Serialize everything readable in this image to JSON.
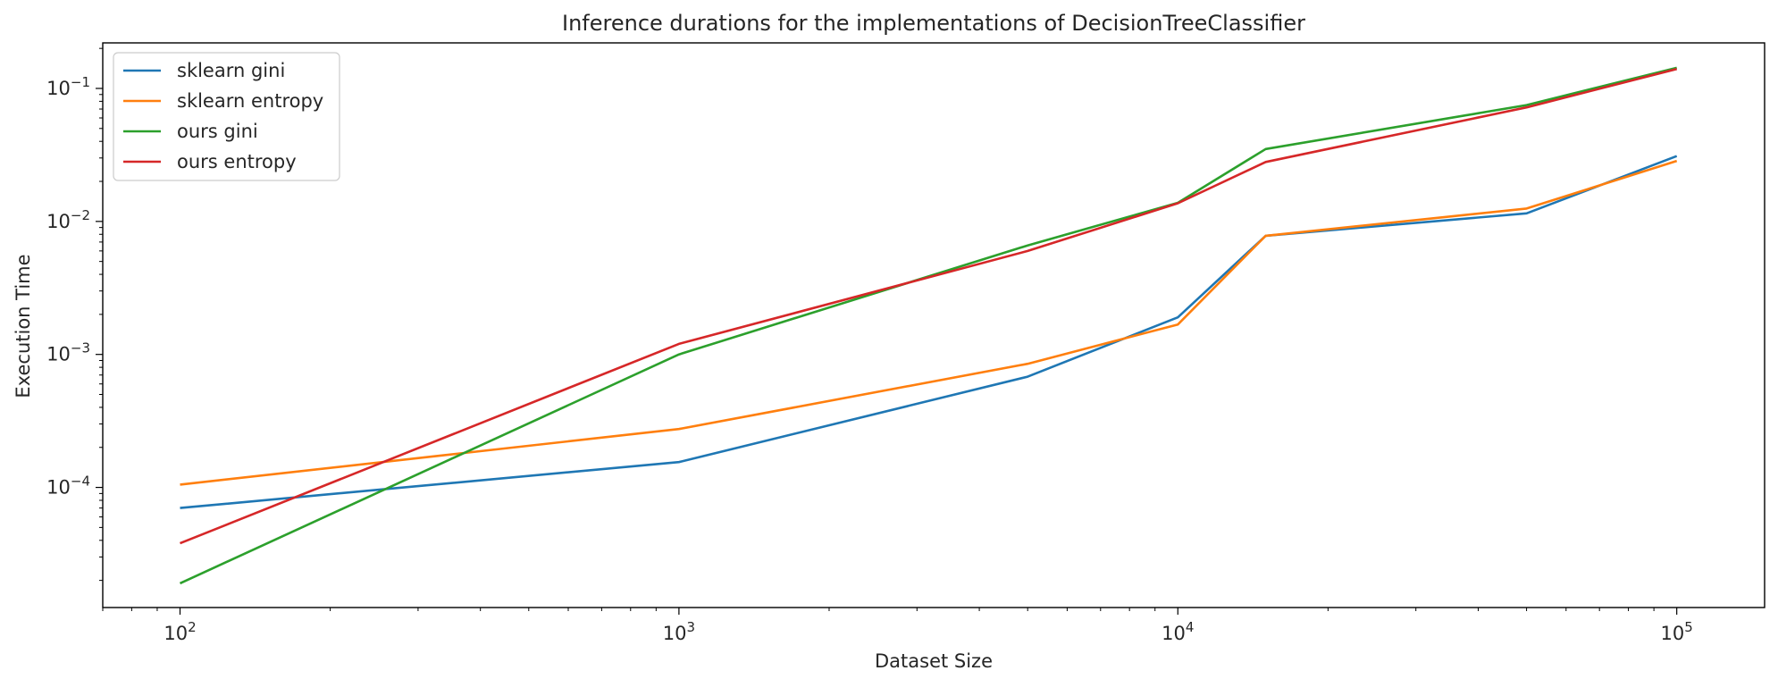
{
  "chart_data": {
    "type": "line",
    "title": "Inference durations for the implementations of DecisionTreeClassifier",
    "xlabel": "Dataset Size",
    "ylabel": "Execution Time",
    "xscale": "log",
    "yscale": "log",
    "xlim": [
      70,
      150000
    ],
    "ylim": [
      1.25e-05,
      0.22
    ],
    "x_ticks": [
      {
        "value": 100,
        "base": "10",
        "exp": "2"
      },
      {
        "value": 1000,
        "base": "10",
        "exp": "3"
      },
      {
        "value": 10000,
        "base": "10",
        "exp": "4"
      },
      {
        "value": 100000,
        "base": "10",
        "exp": "5"
      }
    ],
    "y_ticks": [
      {
        "value": 0.0001,
        "base": "10",
        "exp": "−4"
      },
      {
        "value": 0.001,
        "base": "10",
        "exp": "−3"
      },
      {
        "value": 0.01,
        "base": "10",
        "exp": "−2"
      },
      {
        "value": 0.1,
        "base": "10",
        "exp": "−1"
      }
    ],
    "grid": false,
    "legend_position": "top-left",
    "series": [
      {
        "name": "sklearn gini",
        "color": "#1f77b4",
        "x": [
          100,
          1000,
          5000,
          10000,
          15000,
          50000,
          100000
        ],
        "y": [
          7e-05,
          0.000155,
          0.00068,
          0.0019,
          0.0078,
          0.0115,
          0.031
        ]
      },
      {
        "name": "sklearn entropy",
        "color": "#ff7f0e",
        "x": [
          100,
          1000,
          5000,
          10000,
          15000,
          50000,
          100000
        ],
        "y": [
          0.000105,
          0.000275,
          0.00085,
          0.00168,
          0.0078,
          0.0125,
          0.0285
        ]
      },
      {
        "name": "ours gini",
        "color": "#2ca02c",
        "x": [
          100,
          1000,
          5000,
          10000,
          15000,
          50000,
          100000
        ],
        "y": [
          1.9e-05,
          0.001,
          0.0066,
          0.0138,
          0.035,
          0.075,
          0.143
        ]
      },
      {
        "name": "ours entropy",
        "color": "#d62728",
        "x": [
          100,
          1000,
          5000,
          10000,
          15000,
          50000,
          100000
        ],
        "y": [
          3.8e-05,
          0.0012,
          0.006,
          0.0137,
          0.028,
          0.072,
          0.14
        ]
      }
    ]
  }
}
